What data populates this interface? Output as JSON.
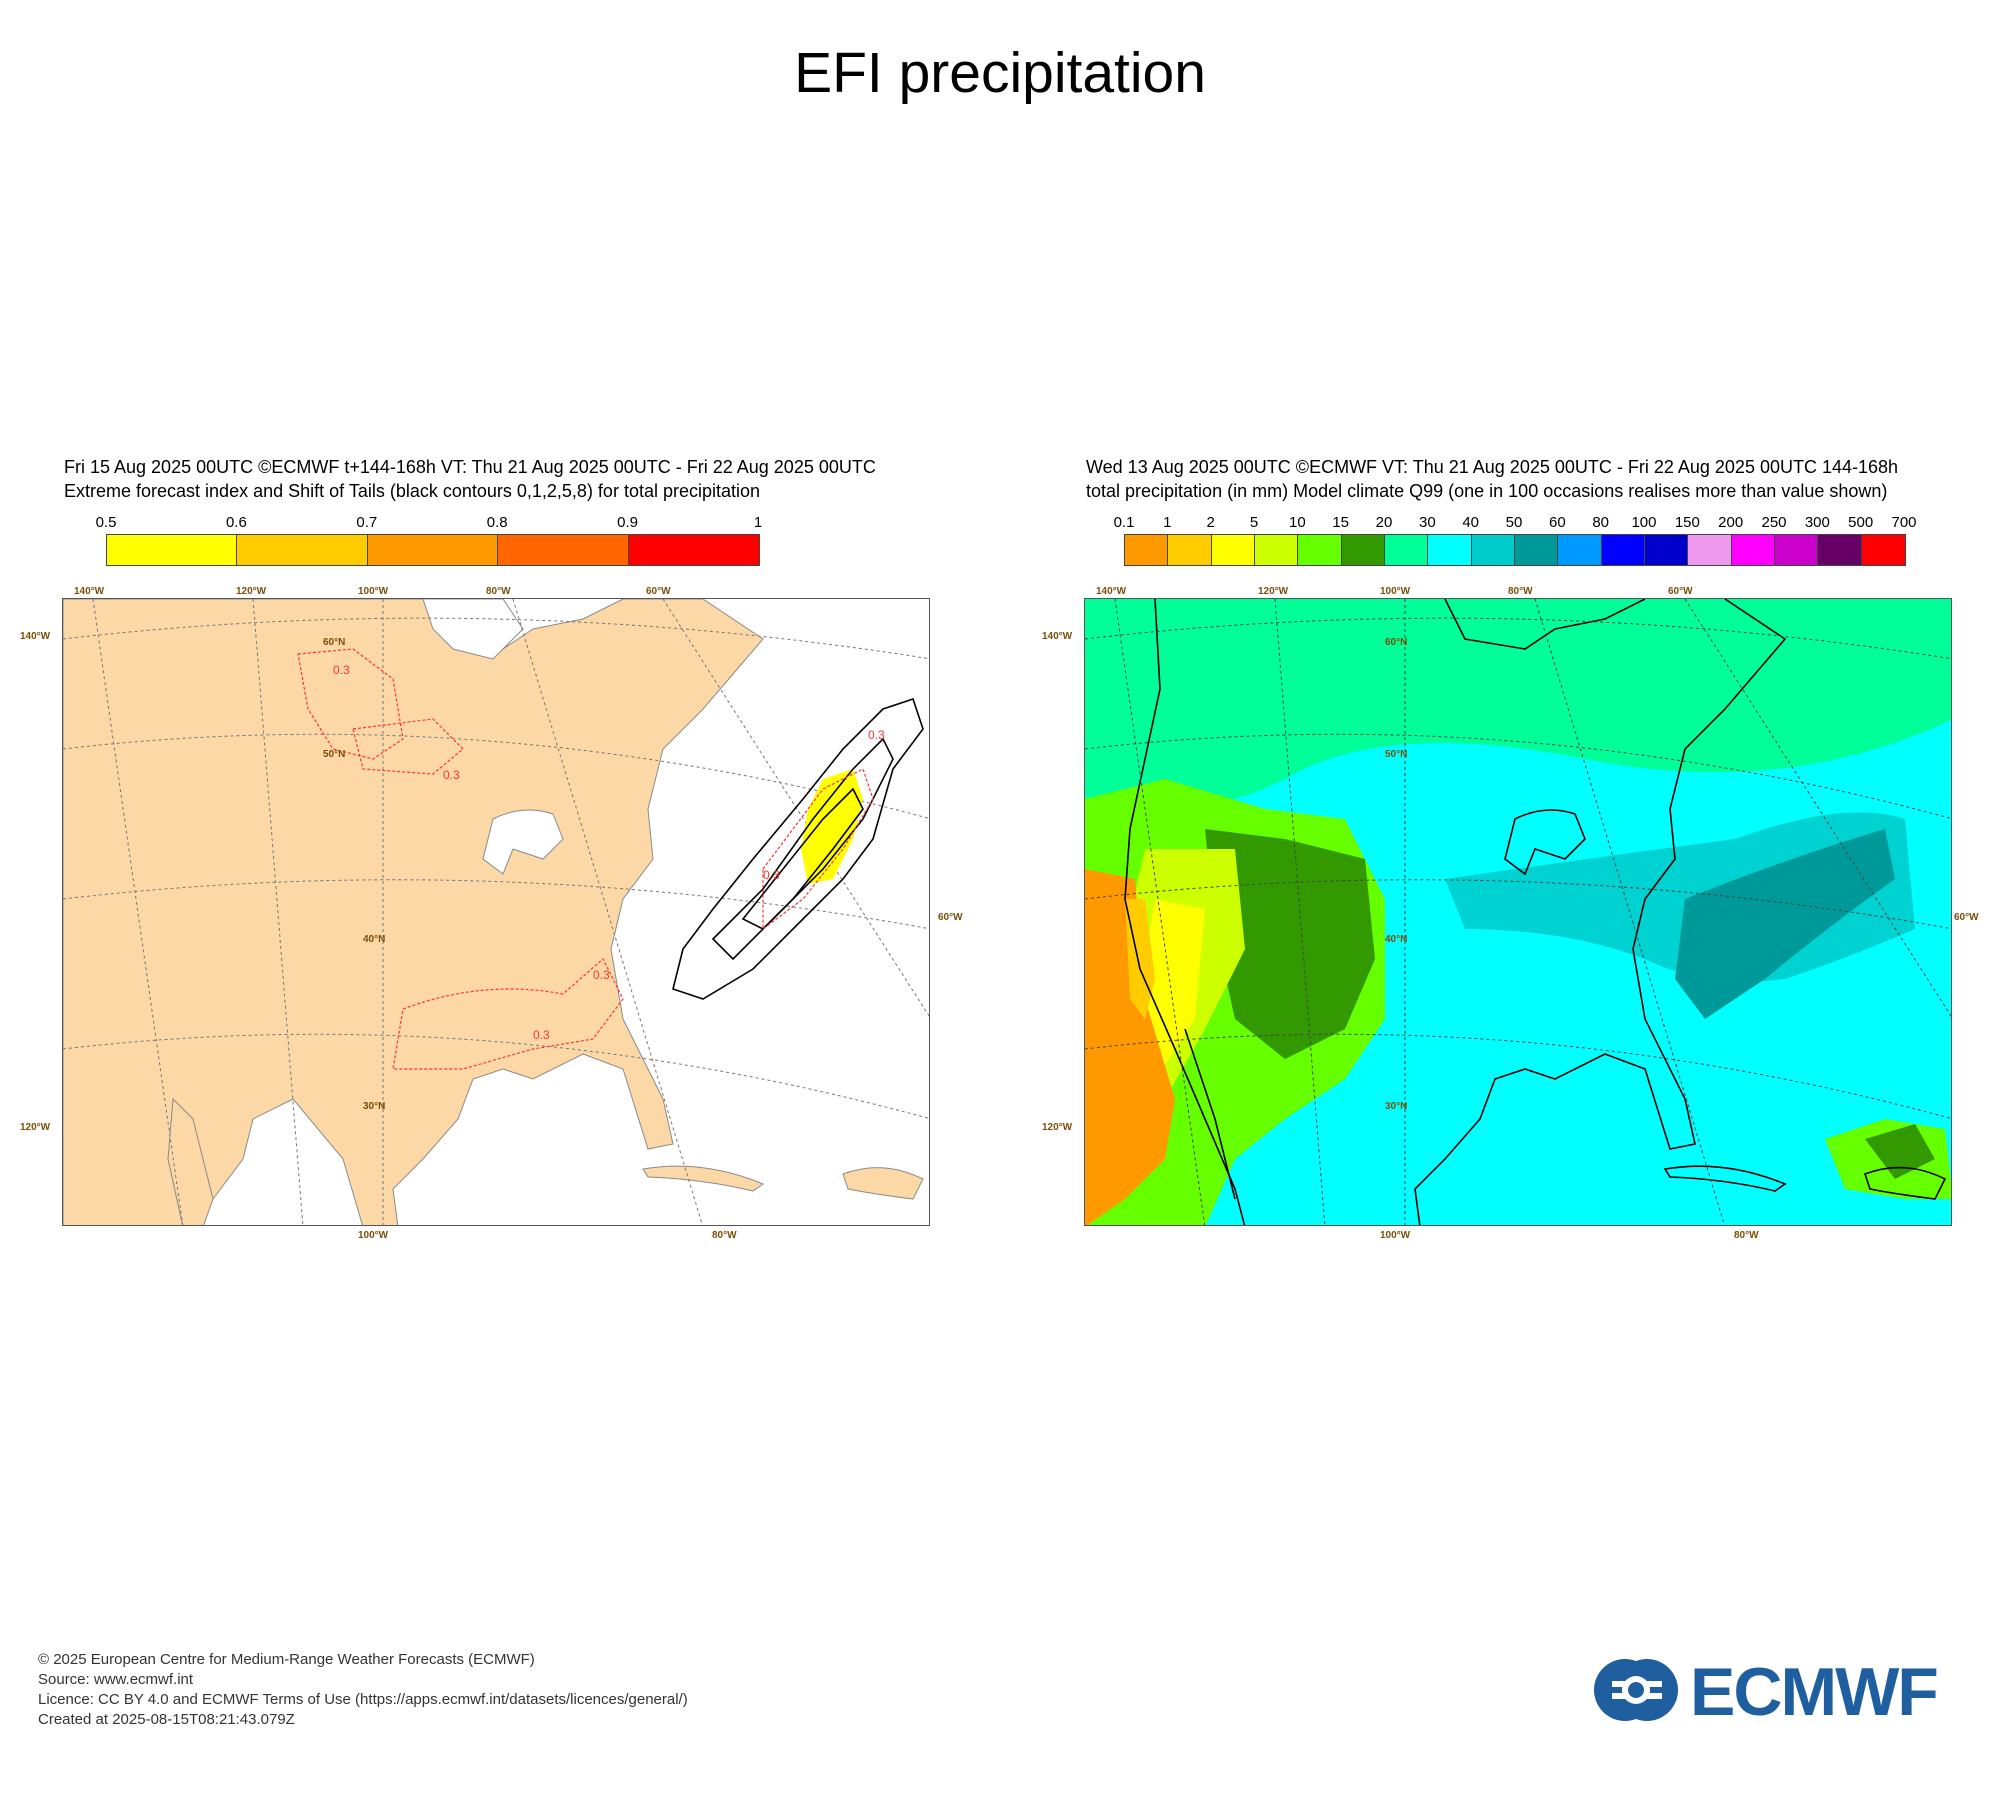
{
  "page": {
    "title": "EFI precipitation"
  },
  "left_panel": {
    "header_line1": "Fri 15 Aug 2025 00UTC ©ECMWF t+144-168h  VT: Thu 21 Aug 2025 00UTC - Fri 22 Aug 2025 00UTC",
    "header_line2": "Extreme forecast index and Shift of Tails (black contours 0,1,2,5,8) for total precipitation",
    "colorbar": {
      "ticks": [
        "0.5",
        "0.6",
        "0.7",
        "0.8",
        "0.9",
        "1"
      ],
      "colors": [
        "#ffff00",
        "#ffcc00",
        "#ff9900",
        "#ff6600",
        "#ff0000"
      ]
    },
    "grid_labels": {
      "top": [
        "140°W",
        "120°W",
        "100°W",
        "80°W",
        "60°W"
      ],
      "left": [
        "140°W",
        "120°W"
      ],
      "right": [
        "60°W"
      ],
      "bottom": [
        "100°W",
        "80°W"
      ],
      "lat": [
        "60°N",
        "50°N",
        "40°N",
        "30°N"
      ]
    },
    "contour_labels": [
      "0.3",
      "0.3",
      "0.3",
      "0.3",
      "0.3",
      "0.3"
    ]
  },
  "right_panel": {
    "header_line1": "Wed 13 Aug 2025 00UTC ©ECMWF VT: Thu 21 Aug 2025 00UTC - Fri 22 Aug 2025 00UTC   144-168h",
    "header_line2": "total precipitation (in mm)  Model climate Q99 (one in 100 occasions realises more than value shown)",
    "colorbar": {
      "ticks": [
        "0.1",
        "1",
        "2",
        "5",
        "10",
        "15",
        "20",
        "30",
        "40",
        "50",
        "60",
        "80",
        "100",
        "150",
        "200",
        "250",
        "300",
        "500",
        "700"
      ],
      "colors": [
        "#ff9900",
        "#ffcc00",
        "#ffff00",
        "#ccff00",
        "#66ff00",
        "#339900",
        "#00ff99",
        "#00ffff",
        "#00cccc",
        "#009999",
        "#0099ff",
        "#0000ff",
        "#0000cc",
        "#ee99ee",
        "#ff00ff",
        "#cc00cc",
        "#660066",
        "#ff0000"
      ]
    },
    "grid_labels": {
      "top": [
        "140°W",
        "120°W",
        "100°W",
        "80°W",
        "60°W"
      ],
      "left": [
        "140°W",
        "120°W"
      ],
      "right": [
        "60°W"
      ],
      "bottom": [
        "100°W",
        "80°W"
      ],
      "lat": [
        "60°N",
        "50°N",
        "40°N",
        "30°N"
      ]
    }
  },
  "footer": {
    "line1": "© 2025 European Centre for Medium-Range Weather Forecasts (ECMWF)",
    "line2": "Source: www.ecmwf.int",
    "line3": "Licence: CC BY 4.0 and ECMWF Terms of Use (https://apps.ecmwf.int/datasets/licences/general/)",
    "line4": "Created at 2025-08-15T08:21:43.079Z"
  },
  "logo": {
    "text": "ECMWF",
    "color": "#1f5f9f"
  }
}
